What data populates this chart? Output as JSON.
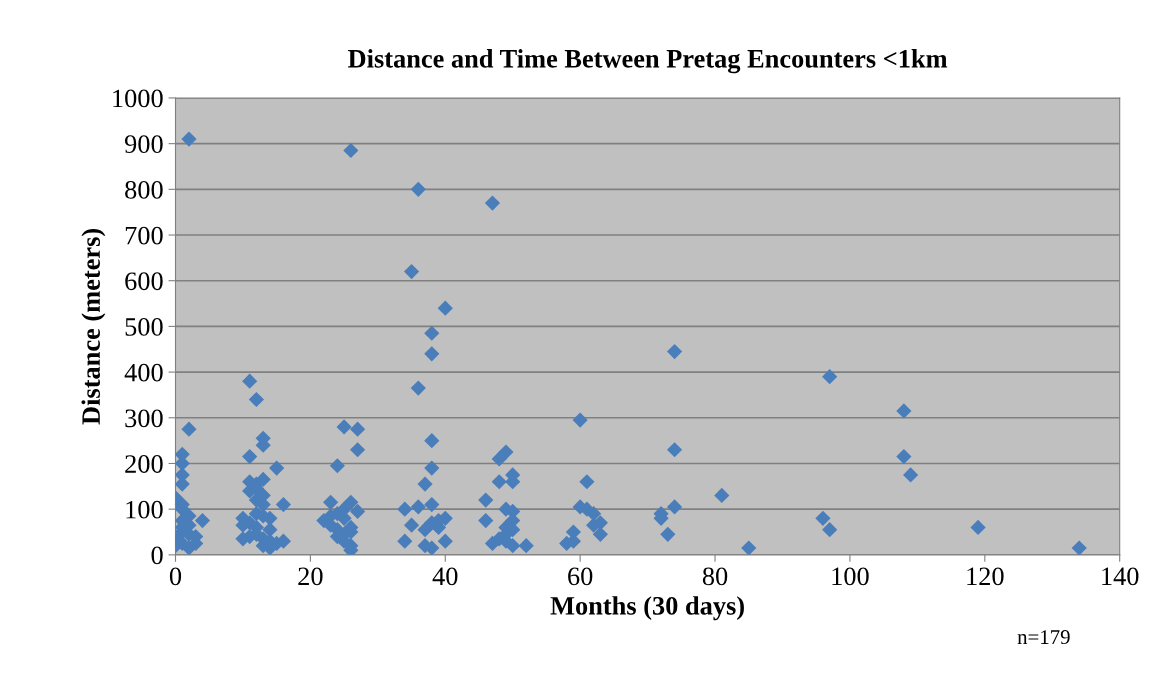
{
  "chart_data": {
    "type": "scatter",
    "title": "Distance and Time Between Pretag Encounters <1km",
    "xlabel": "Months (30 days)",
    "ylabel": "Distance (meters)",
    "annotations": [
      "n=179"
    ],
    "xlim": [
      0,
      140
    ],
    "xticks": [
      0,
      20,
      40,
      60,
      80,
      100,
      120,
      140
    ],
    "ylim": [
      0,
      1000
    ],
    "yticks": [
      0,
      100,
      200,
      300,
      400,
      500,
      600,
      700,
      800,
      900,
      1000
    ],
    "grid": "y",
    "marker": "diamond",
    "legend": false,
    "series": [
      {
        "color": "#4a7ebb",
        "x": [
          2,
          2,
          1,
          1,
          1,
          1,
          0,
          0,
          1,
          1,
          2,
          1,
          2,
          4,
          1,
          2,
          0,
          0,
          1,
          0,
          3,
          1,
          2,
          3,
          11,
          12,
          13,
          13,
          11,
          15,
          11,
          12,
          13,
          12,
          11,
          13,
          12,
          13,
          16,
          10,
          11,
          12,
          13,
          14,
          10,
          12,
          14,
          10,
          11,
          13,
          14,
          15,
          16,
          12,
          13,
          14,
          26,
          25,
          27,
          27,
          24,
          23,
          26,
          22,
          24,
          25,
          27,
          23,
          24,
          25,
          26,
          24,
          25,
          26,
          26,
          23,
          25,
          26,
          36,
          35,
          40,
          38,
          38,
          36,
          38,
          38,
          37,
          34,
          36,
          38,
          35,
          37,
          38,
          39,
          40,
          34,
          37,
          38,
          40,
          39,
          47,
          49,
          48,
          50,
          50,
          48,
          46,
          49,
          50,
          46,
          49,
          50,
          48,
          47,
          49,
          50,
          52,
          49,
          50,
          60,
          61,
          60,
          61,
          62,
          59,
          62,
          63,
          63,
          58,
          59,
          74,
          74,
          74,
          72,
          72,
          73,
          81,
          85,
          96,
          97,
          97,
          108,
          108,
          109,
          119,
          134
        ],
        "values": [
          910,
          275,
          220,
          200,
          175,
          155,
          125,
          115,
          110,
          100,
          85,
          75,
          65,
          75,
          50,
          45,
          40,
          30,
          25,
          20,
          25,
          60,
          15,
          40,
          380,
          340,
          255,
          240,
          215,
          190,
          160,
          155,
          165,
          145,
          140,
          130,
          120,
          110,
          110,
          80,
          70,
          90,
          85,
          80,
          65,
          60,
          55,
          35,
          40,
          35,
          30,
          25,
          30,
          45,
          20,
          15,
          885,
          280,
          275,
          230,
          195,
          115,
          115,
          75,
          90,
          80,
          95,
          65,
          55,
          45,
          60,
          40,
          30,
          20,
          10,
          85,
          100,
          50,
          800,
          620,
          540,
          485,
          440,
          365,
          250,
          190,
          155,
          100,
          105,
          110,
          65,
          55,
          70,
          60,
          80,
          30,
          20,
          15,
          30,
          75,
          770,
          225,
          210,
          175,
          160,
          160,
          120,
          100,
          95,
          75,
          60,
          75,
          35,
          25,
          30,
          20,
          20,
          45,
          55,
          295,
          160,
          105,
          100,
          90,
          50,
          65,
          70,
          45,
          25,
          30,
          445,
          230,
          105,
          90,
          80,
          45,
          130,
          15,
          80,
          390,
          55,
          315,
          215,
          175,
          60,
          15
        ]
      }
    ]
  }
}
